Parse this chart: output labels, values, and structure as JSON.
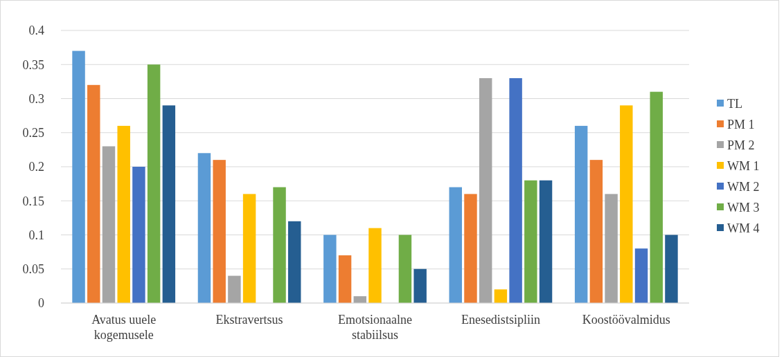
{
  "chart_data": {
    "type": "bar",
    "categories": [
      "Avatus uuele kogemusele",
      "Ekstravertsus",
      "Emotsionaalne stabiilsus",
      "Enesedistsipliin",
      "Koostöövalmidus"
    ],
    "series": [
      {
        "name": "TL",
        "color": "#5b9bd5",
        "values": [
          0.37,
          0.22,
          0.1,
          0.17,
          0.26
        ]
      },
      {
        "name": "PM 1",
        "color": "#ed7d31",
        "values": [
          0.32,
          0.21,
          0.07,
          0.16,
          0.21
        ]
      },
      {
        "name": "PM 2",
        "color": "#a5a5a5",
        "values": [
          0.23,
          0.04,
          0.01,
          0.33,
          0.16
        ]
      },
      {
        "name": "WM 1",
        "color": "#ffc000",
        "values": [
          0.26,
          0.16,
          0.11,
          0.02,
          0.29
        ]
      },
      {
        "name": "WM 2",
        "color": "#4472c4",
        "values": [
          0.2,
          0,
          0,
          0.33,
          0.08
        ]
      },
      {
        "name": "WM 3",
        "color": "#70ad47",
        "values": [
          0.35,
          0.17,
          0.1,
          0.18,
          0.31
        ]
      },
      {
        "name": "WM 4",
        "color": "#255e91",
        "values": [
          0.29,
          0.12,
          0.05,
          0.18,
          0.1
        ]
      }
    ],
    "ylim": [
      0,
      0.4
    ],
    "yticks": [
      0,
      0.05,
      0.1,
      0.15,
      0.2,
      0.25,
      0.3,
      0.35,
      0.4
    ],
    "grid": "y",
    "legend": "right"
  }
}
